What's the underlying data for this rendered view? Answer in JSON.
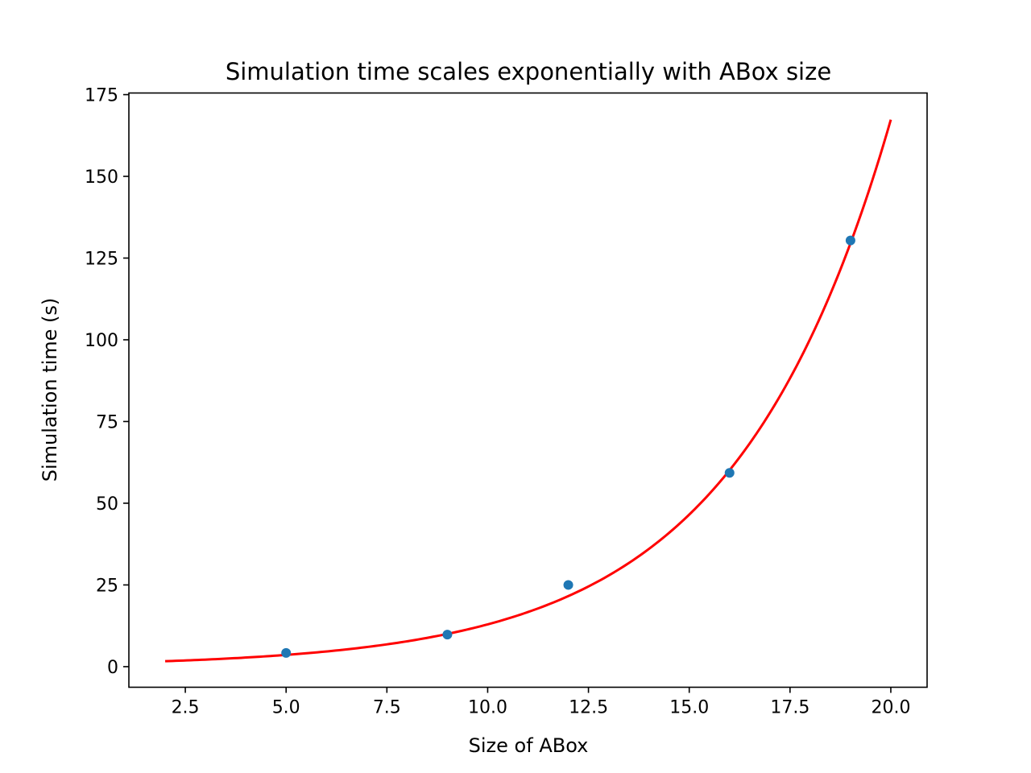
{
  "chart_data": {
    "type": "scatter",
    "title": "Simulation time scales exponentially with ABox size",
    "xlabel": "Size of ABox",
    "ylabel": "Simulation time (s)",
    "xlim": [
      1.1,
      20.9
    ],
    "ylim": [
      -6.3,
      175.5
    ],
    "xticks": [
      2.5,
      5.0,
      7.5,
      10.0,
      12.5,
      15.0,
      17.5,
      20.0
    ],
    "xtick_labels": [
      "2.5",
      "5.0",
      "7.5",
      "10.0",
      "12.5",
      "15.0",
      "17.5",
      "20.0"
    ],
    "yticks": [
      0,
      25,
      50,
      75,
      100,
      125,
      150,
      175
    ],
    "ytick_labels": [
      "0",
      "25",
      "50",
      "75",
      "100",
      "125",
      "150",
      "175"
    ],
    "grid": false,
    "points": {
      "color": "#1f77b4",
      "x": [
        5,
        9,
        12,
        16,
        19
      ],
      "y": [
        4.2,
        9.8,
        25.0,
        59.3,
        130.4
      ]
    },
    "fit_curve": {
      "color": "#ff0000",
      "model": "a*exp(b*x)",
      "a": 1.0,
      "b": 0.256,
      "x_range": [
        2,
        20
      ]
    }
  }
}
